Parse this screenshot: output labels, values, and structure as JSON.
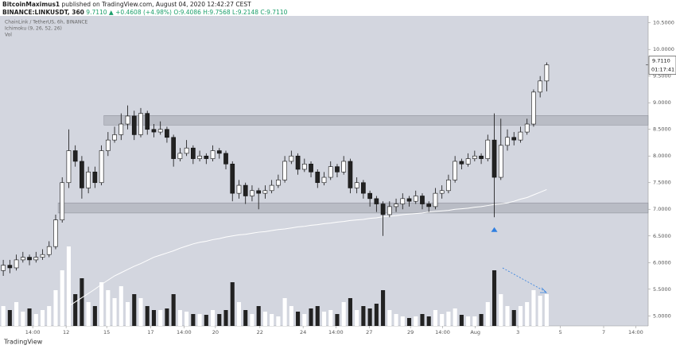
{
  "header": {
    "publisher": "BitcoinMaximus1",
    "published": "published on TradingView.com, August 04, 2020 12:42:27 CEST",
    "symbol": "BINANCE:LINKUSDT, 360",
    "quote": "9.7110 ▲ +0.4608 (+4.98%) O:9.4086 H:9.7568 L:9.2148 C:9.7110"
  },
  "footer": {
    "brand": "TradingView"
  },
  "chart_data": {
    "type": "candlestick",
    "legend": [
      "ChainLink / TetherUS, 6h, BINANCE",
      "Ichimoku (9, 26, 52, 26)",
      "Vol"
    ],
    "background": "#d3d6df",
    "up_color": "#ffffff",
    "down_color": "#222222",
    "open": [
      5.85,
      5.95,
      5.9,
      6.05,
      6.1,
      6.05,
      6.1,
      6.15,
      6.3,
      6.8,
      7.5,
      8.1,
      7.9,
      7.4,
      7.7,
      7.5,
      8.1,
      8.3,
      8.4,
      8.6,
      8.75,
      8.4,
      8.8,
      8.5,
      8.45,
      8.5,
      8.35,
      7.95,
      8.05,
      8.15,
      7.95,
      8.0,
      7.95,
      8.1,
      8.05,
      7.85,
      7.3,
      7.45,
      7.25,
      7.35,
      7.3,
      7.35,
      7.45,
      7.55,
      7.9,
      8.0,
      7.75,
      7.85,
      7.7,
      7.5,
      7.6,
      7.8,
      7.7,
      7.9,
      7.4,
      7.5,
      7.3,
      7.2,
      7.1,
      6.9,
      7.05,
      7.1,
      7.2,
      7.15,
      7.25,
      7.1,
      7.05,
      7.3,
      7.35,
      7.55,
      7.9,
      7.85,
      7.95,
      8.0,
      7.95,
      8.3,
      7.6,
      8.2,
      8.35,
      8.3,
      8.45,
      8.6,
      9.2,
      9.4086
    ],
    "high": [
      6.05,
      6.05,
      6.15,
      6.2,
      6.15,
      6.2,
      6.25,
      6.4,
      6.9,
      7.6,
      8.5,
      8.2,
      8.0,
      7.8,
      7.8,
      8.2,
      8.45,
      8.55,
      8.8,
      8.95,
      8.85,
      8.9,
      8.85,
      8.6,
      8.65,
      8.55,
      8.4,
      8.15,
      8.3,
      8.2,
      8.1,
      8.05,
      8.2,
      8.15,
      8.1,
      7.9,
      7.55,
      7.5,
      7.45,
      7.4,
      7.45,
      7.55,
      7.65,
      8.0,
      8.1,
      8.05,
      7.95,
      7.9,
      7.75,
      7.7,
      7.9,
      7.85,
      8.0,
      7.95,
      7.6,
      7.55,
      7.35,
      7.25,
      7.15,
      7.15,
      7.2,
      7.3,
      7.25,
      7.35,
      7.3,
      7.15,
      7.4,
      7.45,
      7.65,
      8.0,
      7.95,
      8.05,
      8.1,
      8.05,
      8.4,
      8.8,
      8.7,
      8.5,
      8.45,
      8.55,
      8.7,
      9.25,
      9.5,
      9.7568
    ],
    "low": [
      5.75,
      5.8,
      5.85,
      6.0,
      5.95,
      6.0,
      6.05,
      6.1,
      6.25,
      6.75,
      7.4,
      7.8,
      7.2,
      7.3,
      7.4,
      7.45,
      8.0,
      8.25,
      8.3,
      8.5,
      8.3,
      8.35,
      8.4,
      8.35,
      8.4,
      8.25,
      7.8,
      7.9,
      8.0,
      7.85,
      7.9,
      7.85,
      7.9,
      7.95,
      7.75,
      7.15,
      7.2,
      7.1,
      7.15,
      7.0,
      7.2,
      7.3,
      7.4,
      7.5,
      7.85,
      7.65,
      7.7,
      7.6,
      7.4,
      7.45,
      7.55,
      7.6,
      7.65,
      7.3,
      7.3,
      7.2,
      7.05,
      6.95,
      6.5,
      6.85,
      6.95,
      7.0,
      7.05,
      7.1,
      7.0,
      6.95,
      7.0,
      7.2,
      7.3,
      7.5,
      7.75,
      7.8,
      7.9,
      7.85,
      7.9,
      6.85,
      7.55,
      8.1,
      8.2,
      8.25,
      8.4,
      8.55,
      9.1,
      9.2148
    ],
    "close": [
      5.95,
      5.9,
      6.05,
      6.1,
      6.05,
      6.1,
      6.15,
      6.3,
      6.8,
      7.5,
      8.1,
      7.9,
      7.4,
      7.7,
      7.5,
      8.1,
      8.3,
      8.4,
      8.6,
      8.75,
      8.4,
      8.8,
      8.5,
      8.45,
      8.5,
      8.35,
      7.95,
      8.05,
      8.15,
      7.95,
      8.0,
      7.95,
      8.1,
      8.05,
      7.85,
      7.3,
      7.45,
      7.25,
      7.35,
      7.3,
      7.35,
      7.45,
      7.55,
      7.9,
      8.0,
      7.75,
      7.85,
      7.7,
      7.5,
      7.6,
      7.8,
      7.7,
      7.9,
      7.4,
      7.5,
      7.3,
      7.2,
      7.1,
      6.9,
      7.05,
      7.1,
      7.2,
      7.15,
      7.25,
      7.1,
      7.05,
      7.3,
      7.35,
      7.55,
      7.9,
      7.85,
      7.95,
      8.0,
      7.95,
      8.3,
      7.6,
      8.2,
      8.35,
      8.3,
      8.45,
      8.6,
      9.2,
      9.4086,
      9.711
    ],
    "volume": [
      25,
      20,
      30,
      18,
      22,
      15,
      20,
      25,
      45,
      70,
      100,
      40,
      60,
      30,
      25,
      55,
      45,
      35,
      50,
      30,
      40,
      35,
      25,
      20,
      20,
      22,
      40,
      20,
      18,
      15,
      15,
      14,
      20,
      15,
      20,
      55,
      30,
      20,
      15,
      25,
      18,
      15,
      12,
      35,
      25,
      18,
      15,
      22,
      25,
      18,
      20,
      15,
      30,
      35,
      20,
      25,
      22,
      28,
      45,
      20,
      15,
      12,
      10,
      12,
      15,
      12,
      20,
      15,
      18,
      22,
      14,
      12,
      12,
      15,
      30,
      70,
      40,
      25,
      20,
      25,
      30,
      45,
      38,
      40
    ],
    "volume_axis": "y2",
    "line": {
      "color": "#ffffff",
      "values": [
        null,
        null,
        null,
        null,
        null,
        null,
        null,
        null,
        null,
        null,
        5.18,
        5.26,
        5.34,
        5.42,
        5.5,
        5.59,
        5.67,
        5.75,
        5.81,
        5.87,
        5.93,
        5.98,
        6.04,
        6.1,
        6.14,
        6.18,
        6.22,
        6.27,
        6.31,
        6.35,
        6.38,
        6.4,
        6.43,
        6.45,
        6.48,
        6.5,
        6.52,
        6.53,
        6.55,
        6.57,
        6.58,
        6.6,
        6.62,
        6.63,
        6.65,
        6.67,
        6.68,
        6.7,
        6.71,
        6.73,
        6.74,
        6.76,
        6.77,
        6.79,
        6.8,
        6.81,
        6.83,
        6.84,
        6.86,
        6.87,
        6.88,
        6.9,
        6.91,
        6.92,
        6.93,
        6.95,
        6.96,
        6.97,
        6.98,
        7.0,
        7.01,
        7.02,
        7.04,
        7.05,
        7.07,
        7.09,
        7.1,
        7.12,
        7.15,
        7.19,
        7.22,
        7.27,
        7.32,
        7.37
      ]
    },
    "zones": [
      {
        "start": 16,
        "from": 8.58,
        "to": 8.76
      },
      {
        "start": 9,
        "from": 6.93,
        "to": 7.12
      }
    ],
    "marker": {
      "index": 75,
      "value": 6.62,
      "color": "#2f7fe0"
    },
    "xlim": [
      -0.5,
      98.5
    ],
    "xticks": [
      {
        "value": 4.5,
        "label": "14:00"
      },
      {
        "value": 9.6,
        "label": "12"
      },
      {
        "value": 15.8,
        "label": "15"
      },
      {
        "value": 22.5,
        "label": "17"
      },
      {
        "value": 27.6,
        "label": "14:00"
      },
      {
        "value": 32.4,
        "label": "20"
      },
      {
        "value": 39.2,
        "label": "22"
      },
      {
        "value": 45.8,
        "label": "24"
      },
      {
        "value": 50.8,
        "label": "14:00"
      },
      {
        "value": 55.9,
        "label": "27"
      },
      {
        "value": 62.2,
        "label": "29"
      },
      {
        "value": 67.1,
        "label": "14:00"
      },
      {
        "value": 72.1,
        "label": "Aug"
      },
      {
        "value": 78.6,
        "label": "3"
      },
      {
        "value": 85.1,
        "label": "5"
      },
      {
        "value": 91.7,
        "label": "7"
      },
      {
        "value": 96.6,
        "label": "14:00"
      }
    ],
    "ylim": [
      4.81,
      10.63
    ],
    "yticks": [
      {
        "value": 5,
        "label": "5.0000"
      },
      {
        "value": 5.5,
        "label": "5.5000"
      },
      {
        "value": 6,
        "label": "6.0000"
      },
      {
        "value": 6.5,
        "label": "6.5000"
      },
      {
        "value": 7,
        "label": "7.0000"
      },
      {
        "value": 7.5,
        "label": "7.5000"
      },
      {
        "value": 8,
        "label": "8.0000"
      },
      {
        "value": 8.5,
        "label": "8.5000"
      },
      {
        "value": 9,
        "label": "9.0000"
      },
      {
        "value": 9.5,
        "label": "9.5000"
      },
      {
        "value": 10,
        "label": "10.0000"
      },
      {
        "value": 10.5,
        "label": "10.5000"
      }
    ],
    "y2lim": [
      0,
      390
    ],
    "last_price": {
      "value": 9.711,
      "label": "9.7110"
    },
    "countdown": "01:17:41"
  }
}
